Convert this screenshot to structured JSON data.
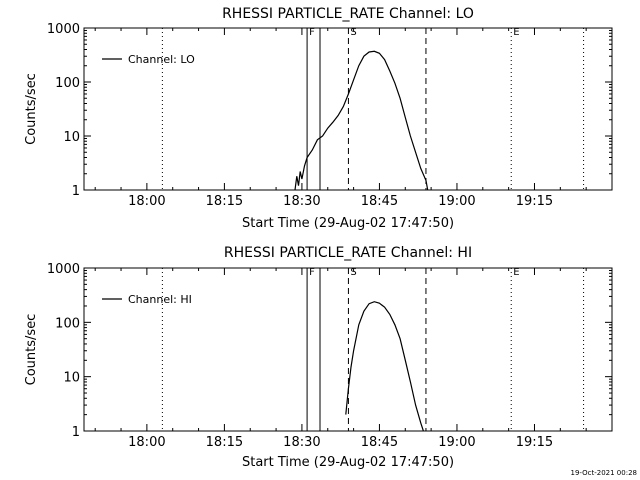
{
  "chart_data": [
    {
      "type": "line",
      "title": "RHESSI PARTICLE_RATE Channel: LO",
      "xlabel": "Start Time (29-Aug-02 17:47:50)",
      "ylabel": "Counts/sec",
      "scale_y": "log",
      "xlim": [
        "17:47:50",
        "19:30:00"
      ],
      "ylim": [
        1,
        1000
      ],
      "x_ticks": [
        "18:00",
        "18:15",
        "18:30",
        "18:45",
        "19:00",
        "19:15"
      ],
      "y_ticks": [
        "1",
        "10",
        "100",
        "1000"
      ],
      "legend": {
        "label": "Channel: LO",
        "placement": "top-left"
      },
      "markers": [
        {
          "label": "",
          "time": "17:47:50",
          "style": "dotted"
        },
        {
          "label": "",
          "time": "18:03:00",
          "style": "dotted"
        },
        {
          "label": "F",
          "time": "18:31:00",
          "style": "solid"
        },
        {
          "label": "",
          "time": "18:33:30",
          "style": "solid"
        },
        {
          "label": "S",
          "time": "18:39:00",
          "style": "dashed"
        },
        {
          "label": "",
          "time": "18:54:00",
          "style": "dashed"
        },
        {
          "label": "E",
          "time": "19:10:30",
          "style": "dotted"
        },
        {
          "label": "",
          "time": "19:24:30",
          "style": "dotted"
        }
      ],
      "series": [
        {
          "name": "Channel: LO",
          "x": [
            "18:28:40",
            "18:29:00",
            "18:29:20",
            "18:29:40",
            "18:30:00",
            "18:30:30",
            "18:31:00",
            "18:32:00",
            "18:33:00",
            "18:34:00",
            "18:35:00",
            "18:36:00",
            "18:37:00",
            "18:38:00",
            "18:39:00",
            "18:40:00",
            "18:41:00",
            "18:42:00",
            "18:43:00",
            "18:44:00",
            "18:45:00",
            "18:46:00",
            "18:47:00",
            "18:48:00",
            "18:49:00",
            "18:50:00",
            "18:51:00",
            "18:52:00",
            "18:53:00",
            "18:54:00",
            "18:54:20"
          ],
          "y": [
            1.0,
            1.8,
            1.2,
            2.2,
            1.6,
            2.8,
            4.0,
            5.5,
            8.5,
            10,
            14,
            18,
            24,
            35,
            60,
            110,
            200,
            300,
            360,
            370,
            340,
            260,
            160,
            95,
            50,
            22,
            10,
            5,
            2.5,
            1.5,
            1.0
          ]
        }
      ]
    },
    {
      "type": "line",
      "title": "RHESSI PARTICLE_RATE Channel: HI",
      "xlabel": "Start Time (29-Aug-02 17:47:50)",
      "ylabel": "Counts/sec",
      "scale_y": "log",
      "xlim": [
        "17:47:50",
        "19:30:00"
      ],
      "ylim": [
        1,
        1000
      ],
      "x_ticks": [
        "18:00",
        "18:15",
        "18:30",
        "18:45",
        "19:00",
        "19:15"
      ],
      "y_ticks": [
        "1",
        "10",
        "100",
        "1000"
      ],
      "legend": {
        "label": "Channel: HI",
        "placement": "top-left"
      },
      "markers": [
        {
          "label": "",
          "time": "17:47:50",
          "style": "dotted"
        },
        {
          "label": "",
          "time": "18:03:00",
          "style": "dotted"
        },
        {
          "label": "F",
          "time": "18:31:00",
          "style": "solid"
        },
        {
          "label": "",
          "time": "18:33:30",
          "style": "solid"
        },
        {
          "label": "S",
          "time": "18:39:00",
          "style": "dashed"
        },
        {
          "label": "",
          "time": "18:54:00",
          "style": "dashed"
        },
        {
          "label": "E",
          "time": "19:10:30",
          "style": "dotted"
        },
        {
          "label": "",
          "time": "19:24:30",
          "style": "dotted"
        }
      ],
      "series": [
        {
          "name": "Channel: HI",
          "x": [
            "18:38:30",
            "18:38:45",
            "18:39:00",
            "18:39:30",
            "18:40:00",
            "18:41:00",
            "18:42:00",
            "18:43:00",
            "18:44:00",
            "18:45:00",
            "18:46:00",
            "18:47:00",
            "18:48:00",
            "18:49:00",
            "18:50:00",
            "18:51:00",
            "18:52:00",
            "18:53:00",
            "18:53:30"
          ],
          "y": [
            2.0,
            3.5,
            6,
            15,
            30,
            90,
            160,
            220,
            240,
            225,
            190,
            140,
            90,
            50,
            20,
            8,
            3,
            1.4,
            1.0
          ]
        }
      ]
    }
  ],
  "footer": {
    "timestamp": "19-Oct-2021 00:28"
  }
}
